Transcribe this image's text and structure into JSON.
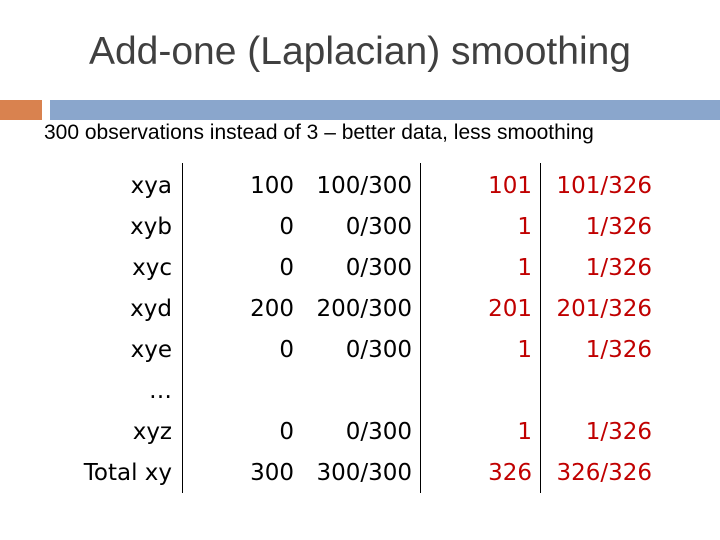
{
  "slide": {
    "title": "Add-one (Laplacian) smoothing",
    "subtitle": "300 observations instead of 3 – better data, less smoothing",
    "colors": {
      "accent": "#d9824f",
      "rule": "#8aa6cc",
      "smoothed_text": "#c00000"
    }
  },
  "table": {
    "rows": [
      {
        "label": "xya",
        "count": "100",
        "prob": "100/300",
        "smoothed_count": "101",
        "smoothed_prob": "101/326"
      },
      {
        "label": "xyb",
        "count": "0",
        "prob": "0/300",
        "smoothed_count": "1",
        "smoothed_prob": "1/326"
      },
      {
        "label": "xyc",
        "count": "0",
        "prob": "0/300",
        "smoothed_count": "1",
        "smoothed_prob": "1/326"
      },
      {
        "label": "xyd",
        "count": "200",
        "prob": "200/300",
        "smoothed_count": "201",
        "smoothed_prob": "201/326"
      },
      {
        "label": "xye",
        "count": "0",
        "prob": "0/300",
        "smoothed_count": "1",
        "smoothed_prob": "1/326"
      },
      {
        "label": "…",
        "count": "",
        "prob": "",
        "smoothed_count": "",
        "smoothed_prob": ""
      },
      {
        "label": "xyz",
        "count": "0",
        "prob": "0/300",
        "smoothed_count": "1",
        "smoothed_prob": "1/326"
      },
      {
        "label": "Total xy",
        "count": "300",
        "prob": "300/300",
        "smoothed_count": "326",
        "smoothed_prob": "326/326"
      }
    ]
  }
}
